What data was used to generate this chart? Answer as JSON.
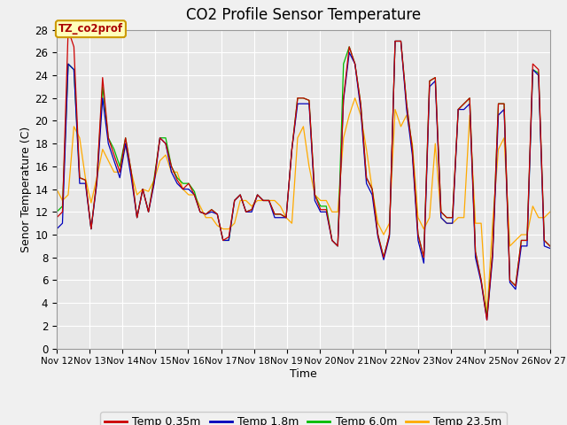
{
  "title": "CO2 Profile Sensor Temperature",
  "xlabel": "Time",
  "ylabel": "Senor Temperature (C)",
  "annotation": "TZ_co2prof",
  "ylim": [
    0,
    28
  ],
  "yticks": [
    0,
    2,
    4,
    6,
    8,
    10,
    12,
    14,
    16,
    18,
    20,
    22,
    24,
    26,
    28
  ],
  "xtick_labels": [
    "Nov 12",
    "Nov 13",
    "Nov 14",
    "Nov 15",
    "Nov 16",
    "Nov 17",
    "Nov 18",
    "Nov 19",
    "Nov 20",
    "Nov 21",
    "Nov 22",
    "Nov 23",
    "Nov 24",
    "Nov 25",
    "Nov 26",
    "Nov 27"
  ],
  "line_colors": [
    "#cc0000",
    "#0000bb",
    "#00bb00",
    "#ffaa00"
  ],
  "line_labels": [
    "Temp 0.35m",
    "Temp 1.8m",
    "Temp 6.0m",
    "Temp 23.5m"
  ],
  "background_color": "#e8e8e8",
  "grid_color": "#ffffff",
  "title_fontsize": 12,
  "axis_fontsize": 9,
  "legend_fontsize": 9,
  "red_data": [
    11.5,
    12.0,
    28.0,
    26.5,
    15.0,
    14.8,
    10.5,
    14.8,
    23.8,
    18.5,
    17.0,
    15.5,
    18.5,
    15.5,
    11.5,
    14.0,
    12.0,
    14.8,
    18.5,
    18.0,
    16.0,
    14.8,
    14.0,
    14.5,
    13.5,
    12.0,
    11.8,
    12.2,
    11.8,
    9.5,
    9.8,
    13.0,
    13.5,
    12.0,
    12.2,
    13.5,
    13.0,
    13.0,
    11.8,
    11.8,
    11.5,
    17.5,
    22.0,
    22.0,
    21.8,
    13.5,
    12.2,
    12.2,
    9.5,
    9.0,
    22.0,
    26.5,
    25.0,
    21.5,
    15.0,
    14.0,
    10.0,
    8.0,
    10.0,
    27.0,
    27.0,
    21.5,
    17.5,
    10.0,
    8.0,
    23.5,
    23.8,
    12.0,
    11.5,
    11.5,
    21.0,
    21.5,
    22.0,
    8.5,
    6.0,
    2.5,
    8.5,
    21.5,
    21.5,
    6.0,
    5.5,
    9.5,
    9.5,
    25.0,
    24.5,
    9.5,
    9.0
  ],
  "blue_data": [
    10.5,
    11.0,
    25.0,
    24.5,
    14.5,
    14.5,
    10.5,
    14.5,
    22.0,
    18.0,
    16.5,
    15.0,
    18.0,
    15.0,
    11.5,
    14.0,
    12.0,
    14.5,
    18.5,
    18.0,
    15.5,
    14.5,
    14.0,
    14.0,
    13.5,
    12.0,
    11.8,
    12.0,
    11.8,
    9.5,
    9.5,
    13.0,
    13.5,
    12.0,
    12.0,
    13.5,
    13.0,
    13.0,
    11.5,
    11.5,
    11.5,
    17.5,
    21.5,
    21.5,
    21.5,
    13.0,
    12.0,
    12.0,
    9.5,
    9.0,
    21.8,
    26.0,
    25.0,
    21.0,
    14.5,
    13.5,
    9.8,
    7.8,
    9.8,
    27.0,
    27.0,
    21.0,
    17.0,
    9.5,
    7.5,
    23.0,
    23.5,
    11.5,
    11.0,
    11.0,
    21.0,
    21.0,
    21.5,
    8.0,
    5.8,
    2.5,
    8.0,
    20.5,
    21.0,
    5.8,
    5.2,
    9.0,
    9.0,
    24.5,
    24.0,
    9.0,
    8.8
  ],
  "green_data": [
    12.0,
    12.5,
    25.0,
    24.5,
    15.0,
    14.8,
    10.5,
    14.8,
    23.0,
    18.5,
    17.5,
    16.0,
    18.5,
    15.5,
    11.5,
    14.0,
    12.0,
    15.0,
    18.5,
    18.5,
    16.0,
    15.0,
    14.5,
    14.5,
    13.8,
    12.0,
    11.8,
    12.2,
    11.8,
    9.5,
    9.5,
    13.0,
    13.5,
    12.0,
    12.2,
    13.5,
    13.0,
    13.0,
    11.8,
    11.8,
    11.5,
    17.5,
    22.0,
    22.0,
    21.8,
    13.5,
    12.5,
    12.5,
    9.5,
    9.0,
    25.0,
    26.5,
    25.0,
    21.5,
    15.0,
    14.0,
    10.0,
    8.0,
    10.0,
    27.0,
    27.0,
    21.5,
    17.5,
    10.0,
    8.0,
    23.5,
    23.8,
    12.0,
    11.5,
    11.5,
    21.0,
    21.5,
    22.0,
    8.5,
    6.0,
    2.8,
    8.5,
    21.5,
    21.5,
    6.0,
    5.5,
    9.5,
    9.5,
    24.5,
    24.2,
    9.5,
    9.0
  ],
  "orange_data": [
    14.0,
    13.0,
    13.5,
    19.5,
    18.5,
    15.0,
    12.8,
    15.0,
    17.5,
    16.5,
    15.5,
    15.5,
    17.8,
    15.5,
    13.5,
    14.0,
    13.8,
    14.8,
    16.5,
    17.0,
    15.5,
    15.5,
    14.0,
    13.5,
    13.5,
    12.5,
    11.5,
    11.5,
    10.8,
    10.5,
    10.5,
    11.0,
    13.0,
    13.0,
    12.5,
    13.0,
    13.0,
    13.0,
    13.0,
    12.5,
    11.5,
    11.0,
    18.5,
    19.5,
    16.0,
    13.5,
    13.0,
    13.0,
    12.0,
    12.0,
    18.5,
    20.5,
    22.0,
    20.5,
    17.5,
    14.0,
    11.0,
    10.0,
    11.0,
    21.0,
    19.5,
    20.5,
    18.0,
    11.5,
    10.5,
    11.5,
    18.0,
    11.5,
    11.0,
    11.0,
    11.5,
    11.5,
    20.5,
    11.0,
    11.0,
    2.8,
    11.0,
    17.5,
    18.5,
    9.0,
    9.5,
    10.0,
    10.0,
    12.5,
    11.5,
    11.5,
    12.0
  ]
}
